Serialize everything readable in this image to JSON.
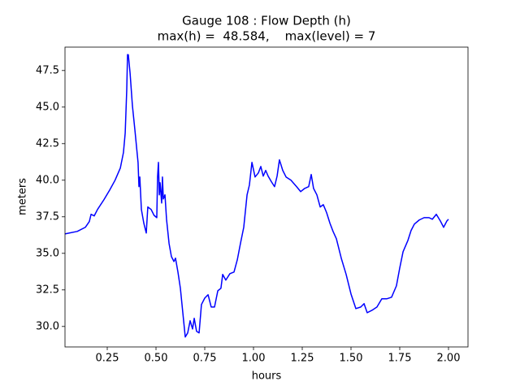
{
  "chart_data": {
    "type": "line",
    "title": "Gauge 108 : Flow Depth (h)",
    "subtitle": "max(h) =  48.584,    max(level) = 7",
    "x_label": "hours",
    "y_label": "meters",
    "color": "#0000ff",
    "x": [
      0.033,
      0.096,
      0.1375,
      0.158,
      0.167,
      0.183,
      0.2,
      0.233,
      0.2625,
      0.29,
      0.317,
      0.333,
      0.342,
      0.35,
      0.354,
      0.358,
      0.367,
      0.379,
      0.392,
      0.408,
      0.4125,
      0.417,
      0.425,
      0.4375,
      0.45,
      0.458,
      0.475,
      0.49,
      0.504,
      0.508,
      0.5125,
      0.517,
      0.521,
      0.529,
      0.533,
      0.5375,
      0.546,
      0.554,
      0.567,
      0.579,
      0.592,
      0.6,
      0.6125,
      0.625,
      0.6375,
      0.65,
      0.6625,
      0.675,
      0.6875,
      0.696,
      0.708,
      0.721,
      0.733,
      0.75,
      0.767,
      0.783,
      0.8,
      0.817,
      0.833,
      0.842,
      0.858,
      0.879,
      0.9,
      0.917,
      0.933,
      0.95,
      0.967,
      0.979,
      0.992,
      1.008,
      1.025,
      1.0375,
      1.05,
      1.0625,
      1.075,
      1.092,
      1.108,
      1.121,
      1.133,
      1.15,
      1.167,
      1.192,
      1.221,
      1.242,
      1.2625,
      1.283,
      1.296,
      1.308,
      1.325,
      1.342,
      1.358,
      1.375,
      1.392,
      1.408,
      1.425,
      1.45,
      1.475,
      1.5,
      1.525,
      1.55,
      1.567,
      1.583,
      1.608,
      1.633,
      1.658,
      1.683,
      1.708,
      1.733,
      1.75,
      1.767,
      1.792,
      1.808,
      1.825,
      1.85,
      1.875,
      1.9,
      1.917,
      1.9375,
      1.958,
      1.975,
      1.992,
      2.0
    ],
    "values": [
      36.33,
      36.5,
      36.78,
      37.17,
      37.67,
      37.56,
      38.0,
      38.67,
      39.33,
      40.0,
      40.83,
      41.89,
      43.22,
      46.2,
      48.584,
      48.58,
      47.33,
      45.1,
      43.4,
      41.2,
      39.56,
      40.22,
      38.0,
      37.06,
      36.39,
      38.17,
      38.0,
      37.6,
      37.44,
      40.22,
      41.22,
      39.0,
      39.83,
      38.44,
      40.22,
      38.72,
      39.0,
      37.33,
      35.67,
      34.78,
      34.44,
      34.67,
      33.72,
      32.61,
      30.94,
      29.28,
      29.56,
      30.39,
      29.83,
      30.56,
      29.67,
      29.56,
      31.5,
      31.94,
      32.17,
      31.33,
      31.33,
      32.44,
      32.61,
      33.56,
      33.17,
      33.61,
      33.72,
      34.56,
      35.67,
      36.78,
      39.0,
      39.67,
      41.22,
      40.22,
      40.5,
      40.94,
      40.28,
      40.67,
      40.28,
      39.89,
      39.56,
      40.28,
      41.39,
      40.67,
      40.22,
      40.0,
      39.56,
      39.22,
      39.44,
      39.56,
      40.39,
      39.44,
      39.0,
      38.17,
      38.33,
      37.78,
      37.06,
      36.5,
      36.0,
      34.67,
      33.56,
      32.22,
      31.22,
      31.33,
      31.56,
      30.94,
      31.11,
      31.33,
      31.89,
      31.89,
      32.0,
      32.78,
      34.0,
      35.11,
      35.89,
      36.56,
      37.0,
      37.28,
      37.44,
      37.44,
      37.33,
      37.67,
      37.22,
      36.78,
      37.22,
      37.33
    ],
    "xlim": [
      0.0333,
      2.1
    ],
    "ylim": [
      28.6,
      49.1
    ],
    "xticks": [
      0.25,
      {
        "value": 0.5,
        "label": "0.50"
      },
      0.75,
      {
        "value": 1.0,
        "label": "1.00"
      },
      1.25,
      {
        "value": 1.5,
        "label": "1.50"
      },
      1.75,
      {
        "value": 2.0,
        "label": "2.00"
      }
    ],
    "yticks": [
      {
        "value": 30,
        "label": "30.0"
      },
      32.5,
      {
        "value": 35,
        "label": "35.0"
      },
      37.5,
      {
        "value": 40,
        "label": "40.0"
      },
      42.5,
      {
        "value": 45,
        "label": "45.0"
      },
      47.5
    ]
  }
}
